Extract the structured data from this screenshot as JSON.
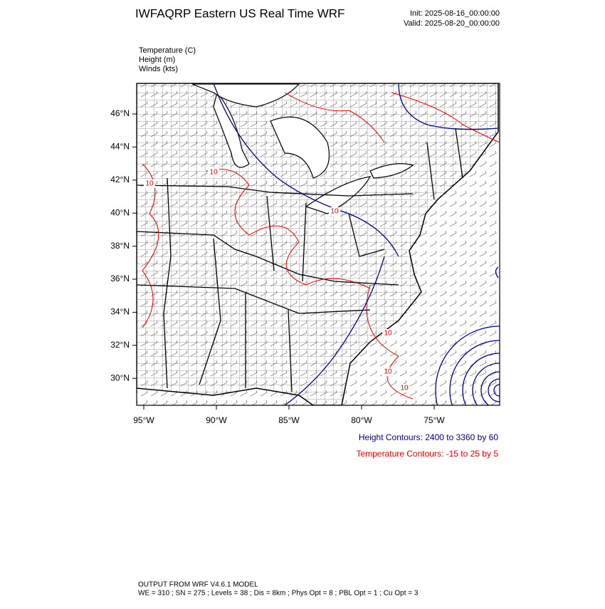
{
  "header": {
    "title": "IWFAQRP Eastern US Real Time WRF",
    "init": "Init: 2025-08-16_00:00:00",
    "valid": "Valid: 2025-08-20_00:00:00"
  },
  "fields": [
    "Temperature   (C)",
    "Height   (m)",
    "Winds   (kts)"
  ],
  "map": {
    "lat_labels": [
      "46°N",
      "44°N",
      "42°N",
      "40°N",
      "38°N",
      "36°N",
      "34°N",
      "32°N",
      "30°N"
    ],
    "lon_labels": [
      "95°W",
      "90°W",
      "85°W",
      "80°W",
      "75°W"
    ],
    "contour_labels": [
      "10",
      "10",
      "10",
      "10",
      "10",
      "10"
    ]
  },
  "captions": {
    "height": "Height Contours: 2400 to 3360 by 60",
    "temperature": "Temperature Contours: -15 to 25 by 5"
  },
  "footer": {
    "line1": "OUTPUT FROM WRF V4.6.1 MODEL",
    "line2": "WE = 310 ; SN = 275 ; Levels = 38 ; Dis = 8km ; Phys Opt = 8 ; PBL Opt = 1 ; Cu Opt = 3"
  }
}
